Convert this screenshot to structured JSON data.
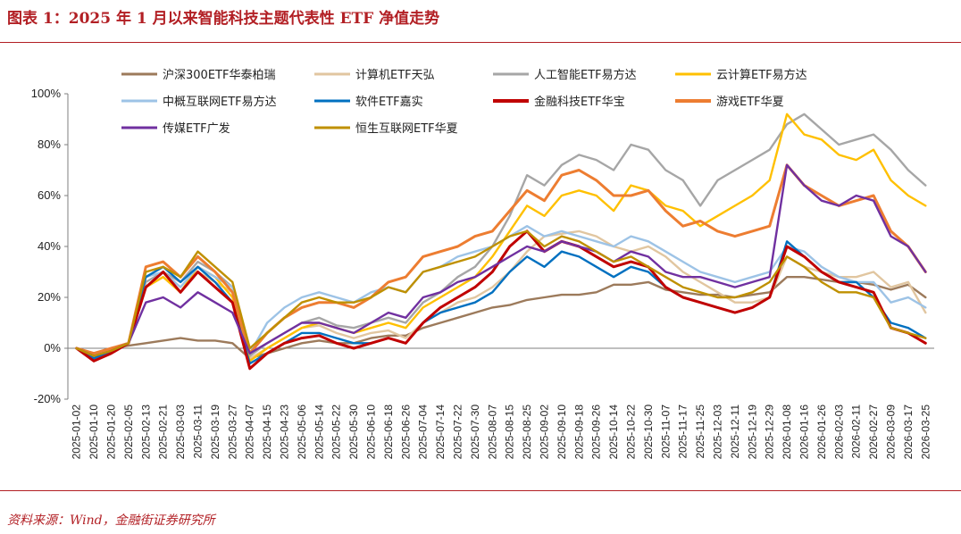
{
  "header": {
    "title": "图表 1：2025 年 1 月以来智能科技主题代表性 ETF 净值走势"
  },
  "footer": {
    "source": "资料来源：Wind，金融街证券研究所"
  },
  "chart_data": {
    "type": "line",
    "title": "",
    "xlabel": "",
    "ylabel": "",
    "ylim": [
      -20,
      100
    ],
    "y_ticks": [
      "-20%",
      "0%",
      "20%",
      "40%",
      "60%",
      "80%",
      "100%"
    ],
    "legend_position": "top",
    "grid": false,
    "x_tick_labels": [
      "2025-01-02",
      "2025-01-10",
      "2025-01-20",
      "2025-02-05",
      "2025-02-13",
      "2025-02-21",
      "2025-03-03",
      "2025-03-11",
      "2025-03-19",
      "2025-03-27",
      "2025-04-07",
      "2025-04-15",
      "2025-04-23",
      "2025-05-06",
      "2025-05-14",
      "2025-05-22",
      "2025-05-30",
      "2025-06-10",
      "2025-06-18",
      "2025-06-26",
      "2025-07-04",
      "2025-07-14",
      "2025-07-22",
      "2025-07-30",
      "2025-08-07",
      "2025-08-15",
      "2025-08-25",
      "2025-09-02",
      "2025-09-10",
      "2025-09-18",
      "2025-09-26",
      "2025-10-14",
      "2025-10-22",
      "2025-10-30",
      "2025-11-07",
      "2025-11-17",
      "2025-11-25",
      "2025-12-03",
      "2025-12-11",
      "2025-12-19",
      "2025-12-29",
      "2026-01-08",
      "2026-01-16",
      "2026-01-26",
      "2026-02-03",
      "2026-02-11",
      "2026-02-27",
      "2026-03-09",
      "2026-03-17",
      "2026-03-25"
    ],
    "series": [
      {
        "name": "沪深300ETF华泰柏瑞",
        "color": "#9c7a5b",
        "values": [
          0,
          -2,
          0,
          1,
          2,
          3,
          4,
          3,
          3,
          2,
          -4,
          -2,
          0,
          2,
          3,
          2,
          2,
          4,
          5,
          5,
          8,
          10,
          12,
          14,
          16,
          17,
          19,
          20,
          21,
          21,
          22,
          25,
          25,
          26,
          23,
          22,
          21,
          21,
          20,
          21,
          22,
          28,
          28,
          27,
          26,
          26,
          25,
          23,
          25,
          20
        ]
      },
      {
        "name": "计算机ETF天弘",
        "color": "#e1c6a0",
        "values": [
          0,
          -3,
          -1,
          2,
          24,
          28,
          22,
          30,
          26,
          22,
          -4,
          0,
          4,
          8,
          9,
          6,
          4,
          6,
          7,
          4,
          10,
          14,
          18,
          20,
          24,
          30,
          38,
          44,
          45,
          46,
          44,
          40,
          38,
          40,
          36,
          30,
          26,
          22,
          18,
          18,
          20,
          36,
          32,
          30,
          28,
          28,
          30,
          24,
          26,
          14
        ]
      },
      {
        "name": "人工智能ETF易方达",
        "color": "#a6a6a6",
        "values": [
          0,
          -3,
          -1,
          2,
          26,
          30,
          26,
          34,
          30,
          24,
          -3,
          2,
          6,
          10,
          12,
          9,
          8,
          10,
          12,
          10,
          18,
          22,
          28,
          32,
          40,
          52,
          68,
          64,
          72,
          76,
          74,
          70,
          80,
          78,
          70,
          66,
          56,
          66,
          70,
          74,
          78,
          88,
          92,
          86,
          80,
          82,
          84,
          78,
          70,
          64
        ]
      },
      {
        "name": "云计算ETF易方达",
        "color": "#ffc000",
        "values": [
          0,
          -3,
          -1,
          2,
          24,
          28,
          22,
          32,
          28,
          20,
          -5,
          0,
          4,
          8,
          10,
          8,
          6,
          8,
          10,
          8,
          16,
          20,
          24,
          28,
          36,
          46,
          56,
          52,
          60,
          62,
          60,
          54,
          64,
          62,
          56,
          54,
          48,
          52,
          56,
          60,
          66,
          92,
          84,
          82,
          76,
          74,
          78,
          66,
          60,
          56
        ]
      },
      {
        "name": "中概互联网ETF易方达",
        "color": "#9dc3e6",
        "values": [
          0,
          -3,
          -1,
          2,
          28,
          30,
          24,
          32,
          28,
          24,
          -2,
          10,
          16,
          20,
          22,
          20,
          18,
          22,
          24,
          22,
          30,
          32,
          36,
          38,
          40,
          44,
          48,
          44,
          46,
          44,
          42,
          40,
          44,
          42,
          38,
          34,
          30,
          28,
          26,
          28,
          30,
          40,
          38,
          32,
          28,
          26,
          26,
          18,
          20,
          16
        ]
      },
      {
        "name": "软件ETF嘉实",
        "color": "#0070c0",
        "values": [
          0,
          -4,
          -1,
          2,
          28,
          32,
          26,
          32,
          26,
          18,
          -6,
          -2,
          2,
          6,
          6,
          4,
          2,
          2,
          4,
          2,
          10,
          14,
          16,
          18,
          22,
          30,
          36,
          32,
          38,
          36,
          32,
          28,
          32,
          30,
          24,
          20,
          18,
          16,
          14,
          16,
          20,
          42,
          36,
          30,
          26,
          26,
          20,
          10,
          8,
          4
        ]
      },
      {
        "name": "金融科技ETF华宝",
        "color": "#c00000",
        "values": [
          0,
          -5,
          -2,
          2,
          24,
          30,
          22,
          30,
          24,
          18,
          -8,
          -2,
          2,
          4,
          5,
          2,
          0,
          2,
          4,
          2,
          10,
          16,
          20,
          24,
          30,
          40,
          46,
          38,
          42,
          40,
          36,
          32,
          34,
          32,
          24,
          20,
          18,
          16,
          14,
          16,
          20,
          40,
          36,
          30,
          26,
          24,
          22,
          8,
          6,
          2
        ]
      },
      {
        "name": "游戏ETF华夏",
        "color": "#ed7d31",
        "values": [
          0,
          -2,
          0,
          2,
          32,
          34,
          28,
          36,
          30,
          22,
          -2,
          6,
          12,
          16,
          18,
          18,
          16,
          20,
          26,
          28,
          36,
          38,
          40,
          44,
          46,
          54,
          62,
          58,
          68,
          70,
          66,
          60,
          60,
          62,
          54,
          48,
          50,
          46,
          44,
          46,
          48,
          72,
          64,
          60,
          56,
          58,
          60,
          46,
          40,
          30
        ]
      },
      {
        "name": "传媒ETF广发",
        "color": "#7030a0",
        "values": [
          0,
          -3,
          -1,
          2,
          18,
          20,
          16,
          22,
          18,
          14,
          -2,
          2,
          6,
          10,
          10,
          8,
          6,
          10,
          14,
          12,
          20,
          22,
          26,
          28,
          32,
          36,
          40,
          38,
          42,
          40,
          38,
          34,
          38,
          36,
          30,
          28,
          28,
          26,
          24,
          26,
          28,
          72,
          64,
          58,
          56,
          60,
          58,
          44,
          40,
          30
        ]
      },
      {
        "name": "恒生互联网ETF华夏",
        "color": "#bf9000",
        "values": [
          0,
          -3,
          -1,
          2,
          30,
          32,
          28,
          38,
          32,
          26,
          0,
          6,
          12,
          18,
          20,
          18,
          18,
          20,
          24,
          22,
          30,
          32,
          34,
          36,
          40,
          44,
          46,
          40,
          44,
          42,
          38,
          34,
          36,
          32,
          28,
          24,
          22,
          20,
          20,
          22,
          26,
          36,
          32,
          26,
          22,
          22,
          20,
          8,
          6,
          4
        ]
      }
    ]
  }
}
